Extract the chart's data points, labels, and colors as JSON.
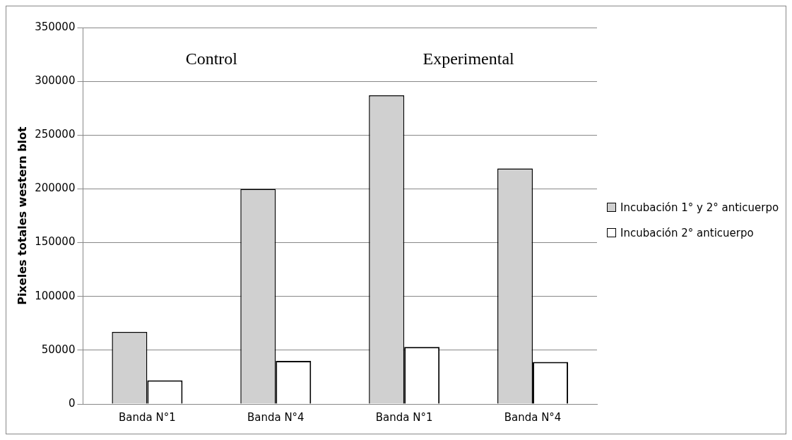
{
  "chart_data": {
    "type": "bar",
    "ylabel": "Pixeles totales western blot",
    "categories": [
      "Banda N°1",
      "Banda N°4",
      "Banda N°1",
      "Banda N°4"
    ],
    "series": [
      {
        "name": "Incubación 1° y 2° anticuerpo",
        "color": "#d0d0d0",
        "values": [
          67000,
          200000,
          287000,
          219000
        ]
      },
      {
        "name": "Incubación 2° anticuerpo",
        "color": "#ffffff",
        "values": [
          22000,
          40000,
          53000,
          39000
        ]
      }
    ],
    "ylim": [
      0,
      350000
    ],
    "yticks": [
      0,
      50000,
      100000,
      150000,
      200000,
      250000,
      300000,
      350000
    ],
    "grid": "y",
    "legend": "right",
    "annotations": [
      "Control",
      "Experimental"
    ]
  }
}
